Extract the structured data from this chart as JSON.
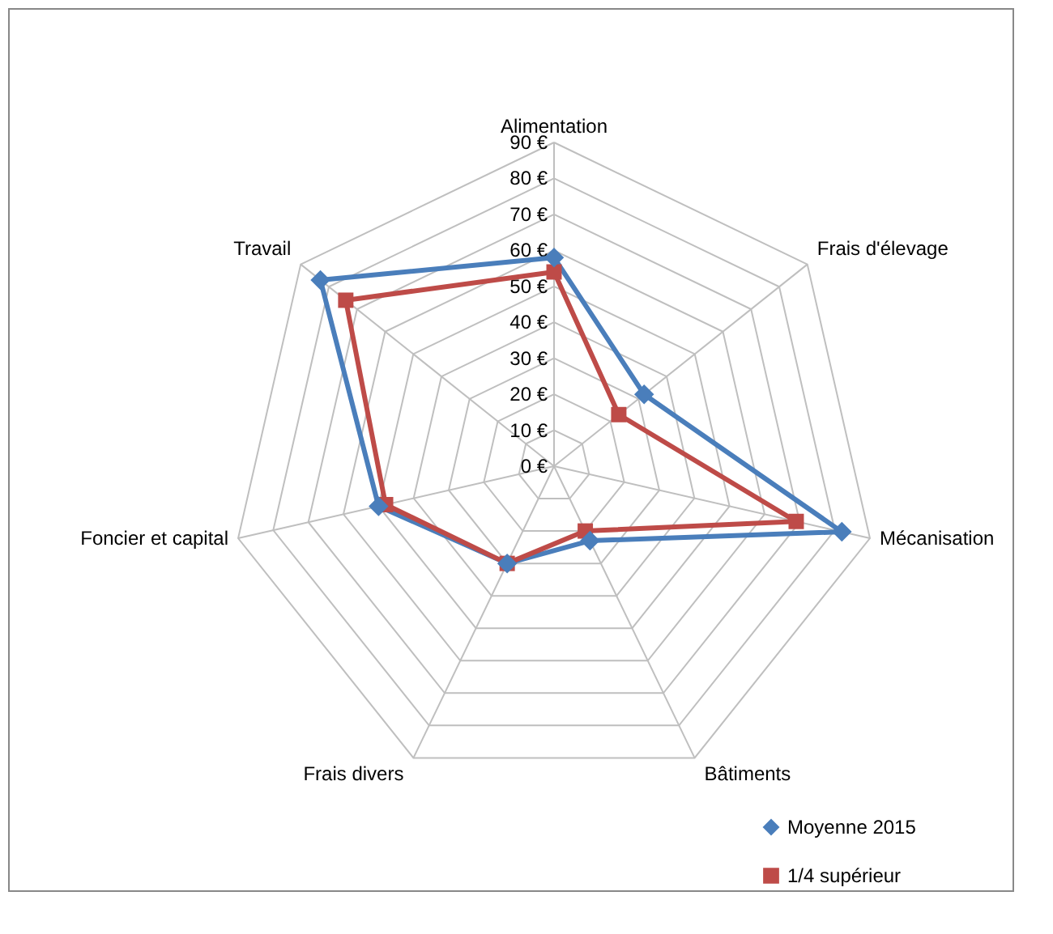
{
  "chart_data": {
    "type": "radar",
    "categories": [
      "Alimentation",
      "Frais d'élevage",
      "Mécanisation",
      "Bâtiments",
      "Frais divers",
      "Foncier et capital",
      "Travail"
    ],
    "ylim": [
      0,
      90
    ],
    "yticks": [
      {
        "value": 0,
        "label": "0 €"
      },
      {
        "value": 10,
        "label": "10 €"
      },
      {
        "value": 20,
        "label": "20 €"
      },
      {
        "value": 30,
        "label": "30 €"
      },
      {
        "value": 40,
        "label": "40 €"
      },
      {
        "value": 50,
        "label": "50 €"
      },
      {
        "value": 60,
        "label": "60 €"
      },
      {
        "value": 70,
        "label": "70 €"
      },
      {
        "value": 80,
        "label": "80 €"
      },
      {
        "value": 90,
        "label": "90 €"
      }
    ],
    "grid": true,
    "legend": "bottom right",
    "series": [
      {
        "name": "Moyenne 2015",
        "color": "#4a7ebb",
        "marker": "diamond",
        "values": [
          58,
          32,
          82,
          23,
          30,
          50,
          83
        ]
      },
      {
        "name": "1/4 supérieur",
        "color": "#be4b48",
        "marker": "square",
        "values": [
          54,
          23,
          69,
          20,
          30,
          48,
          74
        ]
      }
    ]
  }
}
